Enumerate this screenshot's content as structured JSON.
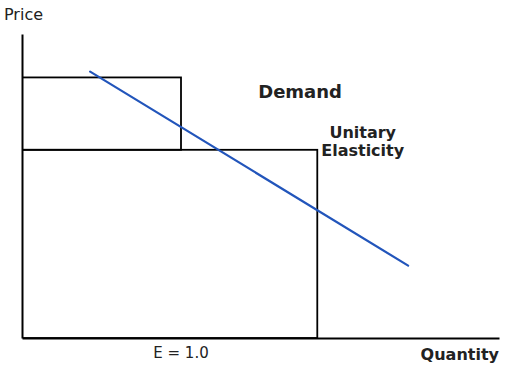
{
  "chart_data": {
    "type": "line",
    "x_label": "Quantity",
    "y_label": "Price",
    "x": [
      1.5,
      8.5
    ],
    "values": [
      9.2,
      2.5
    ],
    "color": "#2255bb",
    "xlim": [
      0,
      10.5
    ],
    "ylim": [
      0,
      10.5
    ],
    "xticks": [],
    "yticks": [],
    "tick_labels": false,
    "rectangles": [
      {
        "x": 0.0,
        "y": 6.5,
        "width": 3.5,
        "height": 2.5,
        "color": "black"
      },
      {
        "x": 0.0,
        "y": 0.0,
        "width": 6.5,
        "height": 6.5,
        "color": "black"
      }
    ],
    "annotations": [
      {
        "text": "Demand",
        "x": 5.2,
        "y": 8.5
      },
      {
        "text": "Unitary\nElasticity",
        "x": 7.5,
        "y": 6.8
      },
      {
        "text": "E = 1.0",
        "x": 3.5
      }
    ]
  }
}
